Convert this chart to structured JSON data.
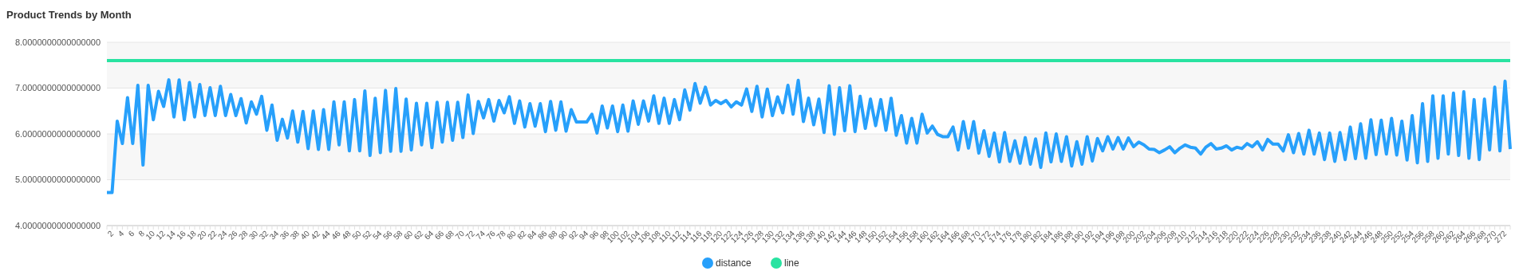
{
  "chart_data": {
    "type": "line",
    "title": "Product Trends by Month",
    "categories": [
      null,
      "2",
      null,
      "4",
      null,
      "6",
      null,
      "8",
      null,
      "10",
      null,
      "12",
      null,
      "14",
      null,
      "16",
      null,
      "18",
      null,
      "20",
      null,
      "22",
      null,
      "24",
      null,
      "26",
      null,
      "28",
      null,
      "30",
      null,
      "32",
      null,
      "34",
      null,
      "36",
      null,
      "38",
      null,
      "40",
      null,
      "42",
      null,
      "44",
      null,
      "46",
      null,
      "48",
      null,
      "50",
      null,
      "52",
      null,
      "54",
      null,
      "56",
      null,
      "58",
      null,
      "60",
      null,
      "62",
      null,
      "64",
      null,
      "66",
      null,
      "68",
      null,
      "70",
      null,
      "72",
      null,
      "74",
      null,
      "76",
      null,
      "78",
      null,
      "80",
      null,
      "82",
      null,
      "84",
      null,
      "86",
      null,
      "88",
      null,
      "90",
      null,
      "92",
      null,
      "94",
      null,
      "96",
      null,
      "98",
      null,
      "100",
      null,
      "102",
      null,
      "104",
      null,
      "106",
      null,
      "108",
      null,
      "110",
      null,
      "112",
      null,
      "114",
      null,
      "116",
      null,
      "118",
      null,
      "120",
      null,
      "122",
      null,
      "124",
      null,
      "126",
      null,
      "128",
      null,
      "130",
      null,
      "132",
      null,
      "134",
      null,
      "136",
      null,
      "138",
      null,
      "140",
      null,
      "142",
      null,
      "144",
      null,
      "146",
      null,
      "148",
      null,
      "150",
      null,
      "152",
      null,
      "154",
      null,
      "156",
      null,
      "158",
      null,
      "160",
      null,
      "162",
      null,
      "164",
      null,
      "166",
      null,
      "168",
      null,
      "170",
      null,
      "172",
      null,
      "174",
      null,
      "176",
      null,
      "178",
      null,
      "180",
      null,
      "182",
      null,
      "184",
      null,
      "186",
      null,
      "188",
      null,
      "190",
      null,
      "192",
      null,
      "194",
      null,
      "196",
      null,
      "198",
      null,
      "200",
      null,
      "202",
      null,
      "204",
      null,
      "206",
      null,
      "208",
      null,
      "210",
      null,
      "212",
      null,
      "214",
      null,
      "216",
      null,
      "218",
      null,
      "220",
      null,
      "222",
      null,
      "224",
      null,
      "226",
      null,
      "228",
      null,
      "230",
      null,
      "232",
      null,
      "234",
      null,
      "236",
      null,
      "238",
      null,
      "240",
      null,
      "242",
      null,
      "244",
      null,
      "246",
      null,
      "248",
      null,
      "250",
      null,
      "252",
      null,
      "254",
      null,
      "256",
      null,
      "258",
      null,
      "260",
      null,
      "262",
      null,
      "264",
      null,
      "266",
      null,
      "268",
      null,
      "270",
      null,
      "272",
      null
    ],
    "series": [
      {
        "name": "distance",
        "color": "#27a0fb",
        "values": [
          4.72,
          4.72,
          6.28,
          5.79,
          6.79,
          5.79,
          7.06,
          5.32,
          7.06,
          6.31,
          6.93,
          6.6,
          7.18,
          6.37,
          7.18,
          6.31,
          7.12,
          6.37,
          7.08,
          6.4,
          7.01,
          6.4,
          7.04,
          6.4,
          6.86,
          6.4,
          6.77,
          6.24,
          6.7,
          6.43,
          6.82,
          6.08,
          6.63,
          5.86,
          6.32,
          5.91,
          6.5,
          5.82,
          6.49,
          5.68,
          6.5,
          5.66,
          6.53,
          5.66,
          6.7,
          5.76,
          6.7,
          5.63,
          6.75,
          5.63,
          6.94,
          5.53,
          6.78,
          5.59,
          6.95,
          5.62,
          6.99,
          5.62,
          6.76,
          5.65,
          6.67,
          5.76,
          6.67,
          5.7,
          6.69,
          5.82,
          6.69,
          5.86,
          6.69,
          5.92,
          6.85,
          6.01,
          6.71,
          6.35,
          6.75,
          6.28,
          6.73,
          6.46,
          6.81,
          6.23,
          6.72,
          6.15,
          6.66,
          6.17,
          6.66,
          6.05,
          6.71,
          6.08,
          6.7,
          6.06,
          6.53,
          6.26,
          6.26,
          6.26,
          6.43,
          6.02,
          6.61,
          6.13,
          6.61,
          6.05,
          6.63,
          6.06,
          6.72,
          6.21,
          6.72,
          6.28,
          6.83,
          6.23,
          6.78,
          6.23,
          6.75,
          6.31,
          6.96,
          6.52,
          7.1,
          6.67,
          7.02,
          6.63,
          6.73,
          6.66,
          6.73,
          6.59,
          6.7,
          6.63,
          6.98,
          6.49,
          7.04,
          6.37,
          6.98,
          6.4,
          6.81,
          6.46,
          7.06,
          6.43,
          7.17,
          6.27,
          6.78,
          6.2,
          6.76,
          6.03,
          7.05,
          5.99,
          7.01,
          6.07,
          7.05,
          6.05,
          6.82,
          6.12,
          6.76,
          6.18,
          6.75,
          6.08,
          6.78,
          5.97,
          6.4,
          5.8,
          6.34,
          5.8,
          6.43,
          6.02,
          6.17,
          5.99,
          5.94,
          5.94,
          6.15,
          5.65,
          6.27,
          5.69,
          6.27,
          5.58,
          6.07,
          5.51,
          6.02,
          5.39,
          6.03,
          5.4,
          5.85,
          5.36,
          5.92,
          5.34,
          5.89,
          5.27,
          6.02,
          5.39,
          6,
          5.4,
          5.94,
          5.3,
          5.83,
          5.34,
          5.94,
          5.41,
          5.9,
          5.63,
          5.94,
          5.67,
          5.92,
          5.67,
          5.91,
          5.72,
          5.82,
          5.76,
          5.67,
          5.66,
          5.59,
          5.65,
          5.72,
          5.59,
          5.69,
          5.76,
          5.71,
          5.69,
          5.56,
          5.71,
          5.79,
          5.67,
          5.69,
          5.74,
          5.65,
          5.71,
          5.68,
          5.79,
          5.72,
          5.83,
          5.65,
          5.88,
          5.78,
          5.78,
          5.63,
          5.98,
          5.59,
          6.01,
          5.56,
          6.08,
          5.56,
          6.02,
          5.44,
          6.02,
          5.4,
          6.03,
          5.44,
          6.15,
          5.46,
          6.22,
          5.47,
          6.31,
          5.55,
          6.3,
          5.56,
          6.34,
          5.54,
          6.28,
          5.43,
          6.4,
          5.37,
          6.66,
          5.4,
          6.83,
          5.47,
          6.83,
          5.56,
          6.89,
          5.53,
          6.92,
          5.47,
          6.75,
          5.44,
          6.76,
          5.65,
          7.02,
          5.63,
          7.15,
          5.67
        ]
      },
      {
        "name": "line",
        "color": "#29e3a1",
        "values": [
          7.6,
          7.6,
          7.6,
          7.6,
          7.6,
          7.6,
          7.6,
          7.6,
          7.6,
          7.6,
          7.6,
          7.6,
          7.6,
          7.6,
          7.6,
          7.6,
          7.6,
          7.6,
          7.6,
          7.6,
          7.6,
          7.6,
          7.6,
          7.6,
          7.6,
          7.6,
          7.6,
          7.6,
          7.6,
          7.6,
          7.6,
          7.6,
          7.6,
          7.6,
          7.6,
          7.6,
          7.6,
          7.6,
          7.6,
          7.6,
          7.6,
          7.6,
          7.6,
          7.6,
          7.6,
          7.6,
          7.6,
          7.6,
          7.6,
          7.6,
          7.6,
          7.6,
          7.6,
          7.6,
          7.6,
          7.6,
          7.6,
          7.6,
          7.6,
          7.6,
          7.6,
          7.6,
          7.6,
          7.6,
          7.6,
          7.6,
          7.6,
          7.6,
          7.6,
          7.6,
          7.6,
          7.6,
          7.6,
          7.6,
          7.6,
          7.6,
          7.6,
          7.6,
          7.6,
          7.6,
          7.6,
          7.6,
          7.6,
          7.6,
          7.6,
          7.6,
          7.6,
          7.6,
          7.6,
          7.6,
          7.6,
          7.6,
          7.6,
          7.6,
          7.6,
          7.6,
          7.6,
          7.6,
          7.6,
          7.6,
          7.6,
          7.6,
          7.6,
          7.6,
          7.6,
          7.6,
          7.6,
          7.6,
          7.6,
          7.6,
          7.6,
          7.6,
          7.6,
          7.6,
          7.6,
          7.6,
          7.6,
          7.6,
          7.6,
          7.6,
          7.6,
          7.6,
          7.6,
          7.6,
          7.6,
          7.6,
          7.6,
          7.6,
          7.6,
          7.6,
          7.6,
          7.6,
          7.6,
          7.6,
          7.6,
          7.6,
          7.6,
          7.6,
          7.6,
          7.6,
          7.6,
          7.6,
          7.6,
          7.6,
          7.6,
          7.6,
          7.6,
          7.6,
          7.6,
          7.6,
          7.6,
          7.6,
          7.6,
          7.6,
          7.6,
          7.6,
          7.6,
          7.6,
          7.6,
          7.6,
          7.6,
          7.6,
          7.6,
          7.6,
          7.6,
          7.6,
          7.6,
          7.6,
          7.6,
          7.6,
          7.6,
          7.6,
          7.6,
          7.6,
          7.6,
          7.6,
          7.6,
          7.6,
          7.6,
          7.6,
          7.6,
          7.6,
          7.6,
          7.6,
          7.6,
          7.6,
          7.6,
          7.6,
          7.6,
          7.6,
          7.6,
          7.6,
          7.6,
          7.6,
          7.6,
          7.6,
          7.6,
          7.6,
          7.6,
          7.6,
          7.6,
          7.6,
          7.6,
          7.6,
          7.6,
          7.6,
          7.6,
          7.6,
          7.6,
          7.6,
          7.6,
          7.6,
          7.6,
          7.6,
          7.6,
          7.6,
          7.6,
          7.6,
          7.6,
          7.6,
          7.6,
          7.6,
          7.6,
          7.6,
          7.6,
          7.6,
          7.6,
          7.6,
          7.6,
          7.6,
          7.6,
          7.6,
          7.6,
          7.6,
          7.6,
          7.6,
          7.6,
          7.6,
          7.6,
          7.6,
          7.6,
          7.6,
          7.6,
          7.6,
          7.6,
          7.6,
          7.6,
          7.6,
          7.6,
          7.6,
          7.6,
          7.6,
          7.6,
          7.6,
          7.6,
          7.6,
          7.6,
          7.6,
          7.6,
          7.6,
          7.6,
          7.6,
          7.6,
          7.6,
          7.6,
          7.6,
          7.6,
          7.6,
          7.6,
          7.6,
          7.6,
          7.6,
          7.6
        ]
      }
    ],
    "ylim": [
      4,
      8
    ],
    "yticks": [
      {
        "value": 4,
        "label": "4.0000000000000000"
      },
      {
        "value": 5,
        "label": "5.0000000000000000"
      },
      {
        "value": 6,
        "label": "6.0000000000000000"
      },
      {
        "value": 7,
        "label": "7.0000000000000000"
      },
      {
        "value": 8,
        "label": "8.0000000000000000"
      }
    ],
    "grid": "y",
    "legend": "bottom",
    "marker": "none",
    "line_style": "solid"
  }
}
